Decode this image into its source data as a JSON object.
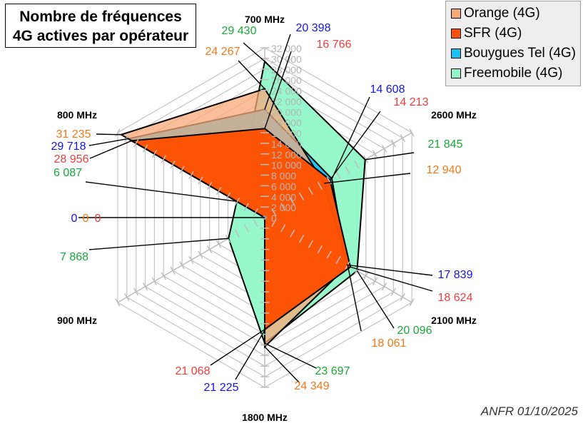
{
  "chart_data": {
    "type": "radar",
    "title_lines": [
      "Nombre de fréquences",
      "4G actives par opérateur"
    ],
    "source": "ANFR 01/10/2025",
    "axes": [
      "700 MHz",
      "2600 MHz",
      "2100 MHz",
      "1800 MHz",
      "900 MHz",
      "800 MHz"
    ],
    "rlim": [
      0,
      32000
    ],
    "ticks": [
      0,
      2000,
      4000,
      6000,
      8000,
      10000,
      12000,
      14000,
      16000,
      18000,
      20000,
      22000,
      24000,
      26000,
      28000,
      30000,
      32000
    ],
    "tick_labels": [
      "0",
      "2 000",
      "4 000",
      "6 000",
      "8 000",
      "10 000",
      "12 000",
      "14 000",
      "16 000",
      "18 000",
      "20 000",
      "22 000",
      "24 000",
      "26 000",
      "28 000",
      "30 000",
      "32 000"
    ],
    "grid": true,
    "legend_position": "top-right",
    "series": [
      {
        "name": "Orange (4G)",
        "color": "#f9a878",
        "label_color": "#f07818",
        "values": [
          24267,
          12940,
          18061,
          24349,
          0,
          31235
        ]
      },
      {
        "name": "SFR (4G)",
        "color": "#ff4f00",
        "label_color": "#f03c3c",
        "values": [
          16766,
          14213,
          18624,
          21068,
          0,
          28956
        ]
      },
      {
        "name": "Bouygues Tel (4G)",
        "color": "#19c2f2",
        "label_color": "#1414e6",
        "values": [
          20398,
          14608,
          17839,
          21225,
          0,
          29718
        ]
      },
      {
        "name": "Freemobile (4G)",
        "color": "#90f8c8",
        "label_color": "#18a838",
        "values": [
          29430,
          21845,
          20096,
          23697,
          7868,
          6087
        ]
      }
    ],
    "data_labels": [
      {
        "series": 3,
        "axis": 0,
        "text": "29 430"
      },
      {
        "series": 0,
        "axis": 0,
        "text": "24 267"
      },
      {
        "series": 2,
        "axis": 0,
        "text": "20 398"
      },
      {
        "series": 1,
        "axis": 0,
        "text": "16 766"
      },
      {
        "series": 2,
        "axis": 1,
        "text": "14 608"
      },
      {
        "series": 1,
        "axis": 1,
        "text": "14 213"
      },
      {
        "series": 3,
        "axis": 1,
        "text": "21 845"
      },
      {
        "series": 0,
        "axis": 1,
        "text": "12 940"
      },
      {
        "series": 2,
        "axis": 2,
        "text": "17 839"
      },
      {
        "series": 1,
        "axis": 2,
        "text": "18 624"
      },
      {
        "series": 3,
        "axis": 2,
        "text": "20 096"
      },
      {
        "series": 0,
        "axis": 2,
        "text": "18 061"
      },
      {
        "series": 3,
        "axis": 3,
        "text": "23 697"
      },
      {
        "series": 0,
        "axis": 3,
        "text": "24 349"
      },
      {
        "series": 1,
        "axis": 3,
        "text": "21 068"
      },
      {
        "series": 2,
        "axis": 3,
        "text": "21 225"
      },
      {
        "series": 2,
        "axis": 4,
        "text": "0"
      },
      {
        "series": 0,
        "axis": 4,
        "text": "0"
      },
      {
        "series": 1,
        "axis": 4,
        "text": "0"
      },
      {
        "series": 3,
        "axis": 4,
        "text": "7 868"
      },
      {
        "series": 0,
        "axis": 5,
        "text": "31 235"
      },
      {
        "series": 2,
        "axis": 5,
        "text": "29 718"
      },
      {
        "series": 1,
        "axis": 5,
        "text": "28 956"
      },
      {
        "series": 3,
        "axis": 5,
        "text": "6 087"
      }
    ]
  }
}
